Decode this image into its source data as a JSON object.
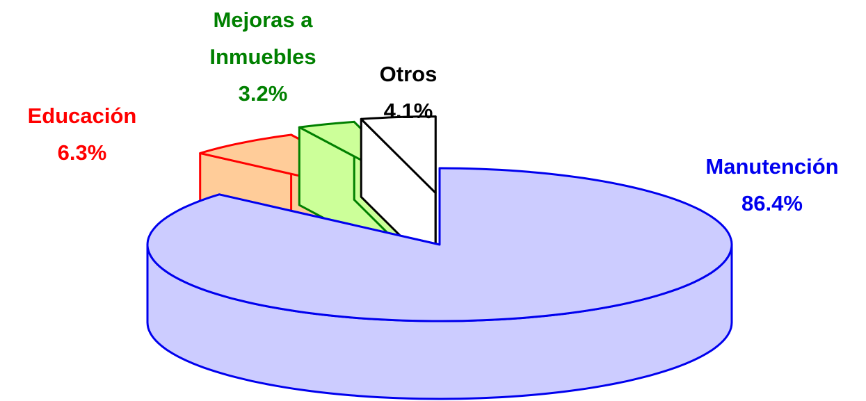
{
  "chart_data": {
    "type": "pie3d",
    "categories": [
      "Manutención",
      "Educación",
      "Mejoras a Inmuebles",
      "Otros"
    ],
    "values": [
      86.4,
      6.3,
      3.2,
      4.1
    ],
    "value_labels": [
      "86.4%",
      "6.3%",
      "3.2%",
      "4.1%"
    ],
    "colors": [
      "#ccccff",
      "#ffcc99",
      "#ccff99",
      "#ffffff"
    ],
    "edge_colors": [
      "#0000ee",
      "#ff0000",
      "#008000",
      "#000000"
    ]
  }
}
